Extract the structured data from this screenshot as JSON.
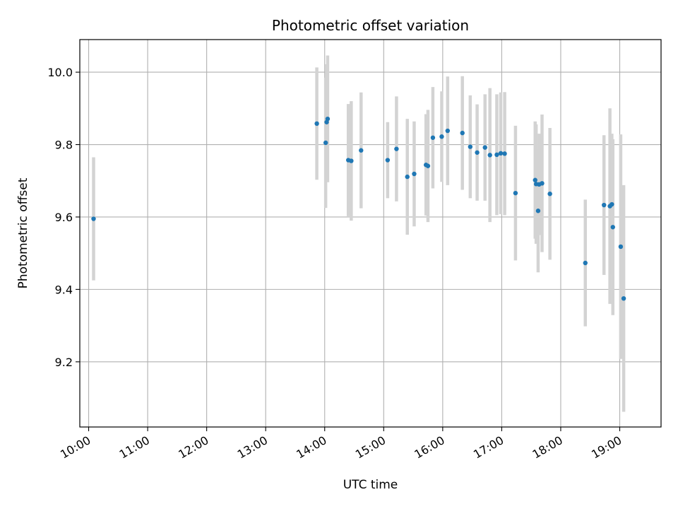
{
  "chart_data": {
    "type": "scatter",
    "title": "Photometric offset variation",
    "xlabel": "UTC time",
    "ylabel": "Photometric offset",
    "x_ticks": [
      "10:00",
      "11:00",
      "12:00",
      "13:00",
      "14:00",
      "15:00",
      "16:00",
      "17:00",
      "18:00",
      "19:00"
    ],
    "x_tick_hours": [
      10,
      11,
      12,
      13,
      14,
      15,
      16,
      17,
      18,
      19
    ],
    "xlim_hours": [
      9.85,
      19.7
    ],
    "y_ticks": [
      "9.2",
      "9.4",
      "9.6",
      "9.8",
      "10.0"
    ],
    "y_tick_values": [
      9.2,
      9.4,
      9.6,
      9.8,
      10.0
    ],
    "ylim": [
      9.02,
      10.09
    ],
    "grid": true,
    "colors": {
      "points": "#1f77b4",
      "error_bars": "#d3d3d3",
      "grid": "#b0b0b0"
    },
    "points": [
      {
        "x": "10:05",
        "y": 9.595,
        "err": 0.17
      },
      {
        "x": "13:52",
        "y": 9.858,
        "err": 0.155
      },
      {
        "x": "14:01",
        "y": 9.805,
        "err": 0.18
      },
      {
        "x": "14:02",
        "y": 9.862,
        "err": 0.16
      },
      {
        "x": "14:03",
        "y": 9.871,
        "err": 0.175
      },
      {
        "x": "14:24",
        "y": 9.757,
        "err": 0.155
      },
      {
        "x": "14:27",
        "y": 9.755,
        "err": 0.165
      },
      {
        "x": "14:37",
        "y": 9.784,
        "err": 0.16
      },
      {
        "x": "15:04",
        "y": 9.757,
        "err": 0.105
      },
      {
        "x": "15:13",
        "y": 9.788,
        "err": 0.145
      },
      {
        "x": "15:24",
        "y": 9.711,
        "err": 0.16
      },
      {
        "x": "15:31",
        "y": 9.719,
        "err": 0.145
      },
      {
        "x": "15:43",
        "y": 9.744,
        "err": 0.14
      },
      {
        "x": "15:45",
        "y": 9.741,
        "err": 0.155
      },
      {
        "x": "15:50",
        "y": 9.819,
        "err": 0.14
      },
      {
        "x": "15:59",
        "y": 9.822,
        "err": 0.125
      },
      {
        "x": "16:05",
        "y": 9.838,
        "err": 0.15
      },
      {
        "x": "16:20",
        "y": 9.832,
        "err": 0.157
      },
      {
        "x": "16:28",
        "y": 9.794,
        "err": 0.142
      },
      {
        "x": "16:35",
        "y": 9.778,
        "err": 0.133
      },
      {
        "x": "16:43",
        "y": 9.792,
        "err": 0.147
      },
      {
        "x": "16:48",
        "y": 9.771,
        "err": 0.185
      },
      {
        "x": "16:55",
        "y": 9.772,
        "err": 0.167
      },
      {
        "x": "16:59",
        "y": 9.776,
        "err": 0.168
      },
      {
        "x": "17:03",
        "y": 9.775,
        "err": 0.17
      },
      {
        "x": "17:14",
        "y": 9.666,
        "err": 0.186
      },
      {
        "x": "17:34",
        "y": 9.702,
        "err": 0.162
      },
      {
        "x": "17:35",
        "y": 9.691,
        "err": 0.165
      },
      {
        "x": "17:37",
        "y": 9.617,
        "err": 0.17
      },
      {
        "x": "17:38",
        "y": 9.69,
        "err": 0.14
      },
      {
        "x": "17:41",
        "y": 9.693,
        "err": 0.19
      },
      {
        "x": "17:49",
        "y": 9.664,
        "err": 0.182
      },
      {
        "x": "18:25",
        "y": 9.473,
        "err": 0.175
      },
      {
        "x": "18:44",
        "y": 9.633,
        "err": 0.193
      },
      {
        "x": "18:50",
        "y": 9.63,
        "err": 0.27
      },
      {
        "x": "18:52",
        "y": 9.635,
        "err": 0.195
      },
      {
        "x": "18:53",
        "y": 9.572,
        "err": 0.243
      },
      {
        "x": "19:01",
        "y": 9.518,
        "err": 0.31
      },
      {
        "x": "19:04",
        "y": 9.375,
        "err": 0.313
      }
    ]
  }
}
